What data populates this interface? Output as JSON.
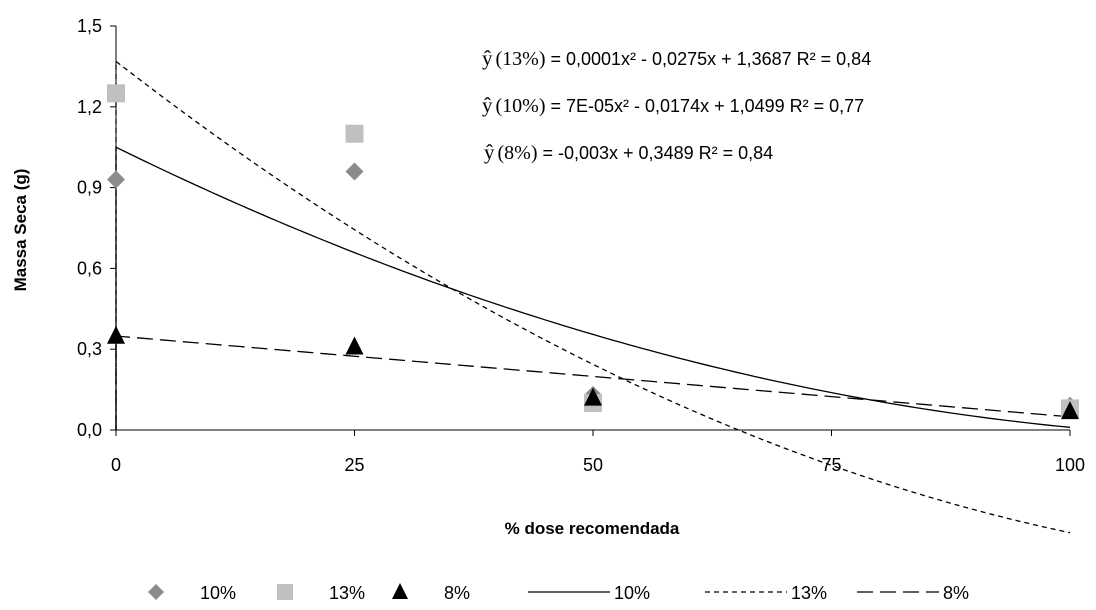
{
  "chart_data": {
    "type": "scatter",
    "xlabel": "% dose recomendada",
    "ylabel": "Massa Seca (g)",
    "xlim": [
      0,
      100
    ],
    "ylim": [
      0,
      1.5
    ],
    "xticks": [
      0,
      25,
      50,
      75,
      100
    ],
    "xtick_labels": [
      "0",
      "25",
      "50",
      "75",
      "100"
    ],
    "yticks": [
      0,
      0.3,
      0.6,
      0.9,
      1.2,
      1.5
    ],
    "ytick_labels": [
      "0,0",
      "0,3",
      "0,6",
      "0,9",
      "1,2",
      "1,5"
    ],
    "grid": false,
    "legend_position": "bottom",
    "series": [
      {
        "name": "10%",
        "marker": "diamond",
        "color": "#8c8c8c",
        "x": [
          0,
          25,
          50,
          100
        ],
        "y": [
          0.93,
          0.96,
          0.13,
          0.09
        ]
      },
      {
        "name": "13%",
        "marker": "square",
        "color": "#c0c0c0",
        "x": [
          0,
          25,
          50,
          100
        ],
        "y": [
          1.25,
          1.1,
          0.1,
          0.08
        ]
      },
      {
        "name": "8%",
        "marker": "triangle",
        "color": "#000000",
        "x": [
          0,
          25,
          50,
          100
        ],
        "y": [
          0.35,
          0.31,
          0.12,
          0.07
        ]
      }
    ],
    "trendlines": [
      {
        "name": "10%",
        "style": "solid",
        "kind": "poly2",
        "coef": [
          7e-05,
          -0.0174,
          1.0499
        ]
      },
      {
        "name": "13%",
        "style": "dotted",
        "kind": "poly2",
        "coef": [
          0.0001,
          -0.0275,
          1.3687
        ]
      },
      {
        "name": "8%",
        "style": "dashed",
        "kind": "linear",
        "coef": [
          -0.003,
          0.3489
        ]
      }
    ],
    "annotations": [
      {
        "pre": "ŷ",
        "pct": "(13%)",
        "text": " = 0,0001x² - 0,0275x + 1,3687  R² = 0,84"
      },
      {
        "pre": "ŷ",
        "pct": "(10%)",
        "text": " = 7E-05x² - 0,0174x + 1,0499  R² = 0,77"
      },
      {
        "pre": "ŷ",
        "pct": "(8%)",
        "text": " = -0,003x + 0,3489  R² = 0,84"
      }
    ],
    "legend": [
      {
        "label": "10%",
        "kind": "marker",
        "marker": "diamond",
        "color": "#8c8c8c"
      },
      {
        "label": "13%",
        "kind": "marker",
        "marker": "square",
        "color": "#c0c0c0"
      },
      {
        "label": "8%",
        "kind": "marker",
        "marker": "triangle",
        "color": "#000000"
      },
      {
        "label": "10%",
        "kind": "line",
        "style": "solid"
      },
      {
        "label": "13%",
        "kind": "line",
        "style": "dotted"
      },
      {
        "label": "8%",
        "kind": "line",
        "style": "dashed"
      }
    ]
  }
}
